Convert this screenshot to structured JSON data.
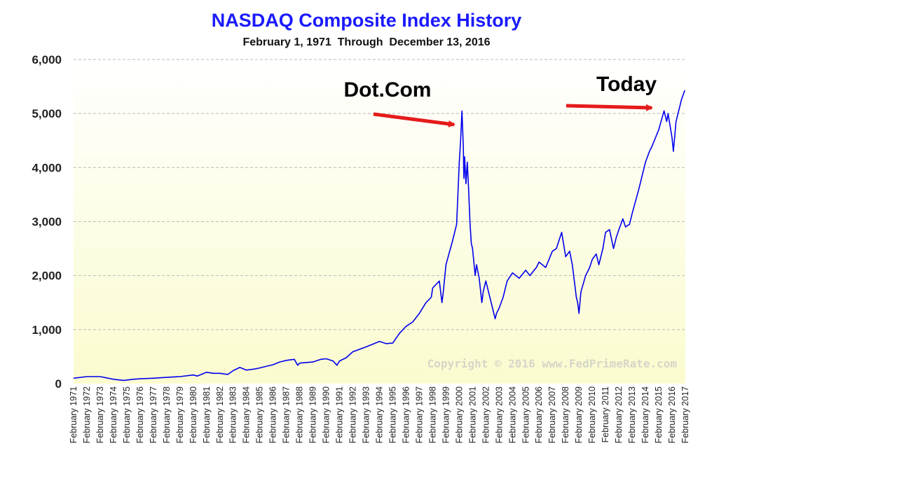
{
  "chart_data": {
    "type": "line",
    "title": "NASDAQ Composite Index History",
    "subtitle": "February 1, 1971  Through  December 13, 2016",
    "xlabel": "",
    "ylabel": "",
    "ylim": [
      0,
      6000
    ],
    "yticks": [
      0,
      1000,
      2000,
      3000,
      4000,
      5000,
      6000
    ],
    "ytick_labels": [
      "0",
      "1,000",
      "2,000",
      "3,000",
      "4,000",
      "5,000",
      "6,000"
    ],
    "xticks": [
      "February 1971",
      "February 1972",
      "February 1973",
      "February 1974",
      "February 1975",
      "February 1976",
      "February 1977",
      "February 1978",
      "February 1979",
      "February 1980",
      "February 1981",
      "February 1982",
      "February 1983",
      "February 1984",
      "February 1985",
      "February 1986",
      "February 1987",
      "February 1988",
      "February 1989",
      "February 1990",
      "February 1991",
      "February 1992",
      "February 1993",
      "February 1994",
      "February 1995",
      "February 1996",
      "February 1997",
      "February 1998",
      "February 1999",
      "February 2000",
      "February 2001",
      "February 2002",
      "February 2003",
      "February 2004",
      "February 2005",
      "February 2006",
      "February 2007",
      "February 2008",
      "February 2009",
      "February 2010",
      "February 2011",
      "February 2012",
      "February 2013",
      "February 2014",
      "February 2015",
      "February 2016",
      "February 2017"
    ],
    "xlim": [
      1971.0,
      2017.0
    ],
    "grid": true,
    "background": "gradient-yellow",
    "line_color": "#0000ee",
    "series": [
      {
        "x": [
          1971.0,
          1972.0,
          1973.0,
          1974.0,
          1974.75,
          1975.5,
          1976.0,
          1977.0,
          1978.0,
          1979.0,
          1980.0,
          1980.3,
          1981.0,
          1981.5,
          1982.0,
          1982.6,
          1983.0,
          1983.5,
          1984.0,
          1984.6,
          1985.0,
          1986.0,
          1986.5,
          1987.0,
          1987.6,
          1987.85,
          1988.0,
          1989.0,
          1989.6,
          1990.0,
          1990.5,
          1990.8,
          1991.0,
          1991.5,
          1992.0,
          1993.0,
          1994.0,
          1994.5,
          1995.0,
          1995.5,
          1996.0,
          1996.5,
          1997.0,
          1997.5,
          1997.9,
          1998.0,
          1998.5,
          1998.7,
          1998.8,
          1999.0,
          1999.5,
          1999.8,
          2000.0,
          2000.1,
          2000.2,
          2000.3,
          2000.35,
          2000.4,
          2000.5,
          2000.6,
          2000.7,
          2000.8,
          2000.9,
          2001.0,
          2001.2,
          2001.3,
          2001.5,
          2001.7,
          2001.8,
          2002.0,
          2002.5,
          2002.7,
          2002.8,
          2003.0,
          2003.3,
          2003.6,
          2004.0,
          2004.5,
          2005.0,
          2005.3,
          2005.8,
          2006.0,
          2006.5,
          2007.0,
          2007.3,
          2007.7,
          2008.0,
          2008.3,
          2008.5,
          2008.8,
          2008.9,
          2009.0,
          2009.15,
          2009.5,
          2009.8,
          2010.0,
          2010.3,
          2010.5,
          2010.8,
          2011.0,
          2011.3,
          2011.6,
          2011.8,
          2012.0,
          2012.3,
          2012.5,
          2012.8,
          2013.0,
          2013.5,
          2014.0,
          2014.3,
          2014.5,
          2015.0,
          2015.4,
          2015.6,
          2015.7,
          2015.9,
          2016.0,
          2016.1,
          2016.3,
          2016.5,
          2016.7,
          2016.95
        ],
        "y": [
          100,
          130,
          130,
          80,
          60,
          80,
          90,
          100,
          115,
          130,
          160,
          140,
          210,
          190,
          190,
          170,
          240,
          300,
          250,
          270,
          290,
          350,
          400,
          430,
          450,
          340,
          380,
          400,
          450,
          460,
          420,
          340,
          420,
          480,
          590,
          680,
          780,
          740,
          750,
          930,
          1060,
          1140,
          1300,
          1500,
          1600,
          1770,
          1900,
          1500,
          1700,
          2200,
          2650,
          2950,
          4100,
          4500,
          5048,
          4400,
          3800,
          4200,
          3700,
          4100,
          3600,
          3000,
          2600,
          2500,
          2000,
          2200,
          1950,
          1500,
          1700,
          1900,
          1400,
          1200,
          1300,
          1400,
          1600,
          1900,
          2050,
          1950,
          2100,
          2000,
          2150,
          2250,
          2150,
          2450,
          2500,
          2800,
          2350,
          2450,
          2200,
          1600,
          1500,
          1300,
          1700,
          2000,
          2150,
          2300,
          2400,
          2200,
          2500,
          2800,
          2850,
          2500,
          2700,
          2850,
          3050,
          2900,
          2950,
          3150,
          3600,
          4100,
          4300,
          4400,
          4700,
          5050,
          4850,
          5000,
          4700,
          4550,
          4300,
          4850,
          5050,
          5250,
          5430
        ]
      }
    ],
    "annotations": [
      {
        "text": "Dot.Com",
        "x": 2000.2,
        "y": 5048
      },
      {
        "text": "Today",
        "x": 2015.4,
        "y": 5100
      }
    ],
    "watermark": "Copyright © 2016 www.FedPrimeRate.com"
  }
}
